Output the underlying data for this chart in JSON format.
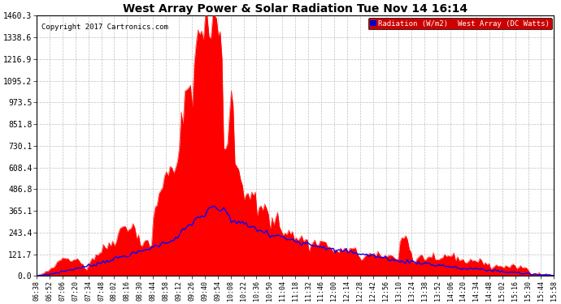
{
  "title": "West Array Power & Solar Radiation Tue Nov 14 16:14",
  "copyright": "Copyright 2017 Cartronics.com",
  "legend_radiation": "Radiation (W/m2)",
  "legend_west_array": "West Array (DC Watts)",
  "background_color": "#ffffff",
  "plot_bg_color": "#ffffff",
  "grid_color": "#b0b0b0",
  "red_fill_color": "#ff0000",
  "blue_line_color": "#0000ff",
  "yticks": [
    0.0,
    121.7,
    243.4,
    365.1,
    486.8,
    608.4,
    730.1,
    851.8,
    973.5,
    1095.2,
    1216.9,
    1338.6,
    1460.3
  ],
  "ymax": 1460.3,
  "ymin": 0.0,
  "xtick_labels": [
    "06:38",
    "06:52",
    "07:06",
    "07:20",
    "07:34",
    "07:48",
    "08:02",
    "08:16",
    "08:30",
    "08:44",
    "08:58",
    "09:12",
    "09:26",
    "09:40",
    "09:54",
    "10:08",
    "10:22",
    "10:36",
    "10:50",
    "11:04",
    "11:18",
    "11:32",
    "11:46",
    "12:00",
    "12:14",
    "12:28",
    "12:42",
    "12:56",
    "13:10",
    "13:24",
    "13:38",
    "13:52",
    "14:06",
    "14:20",
    "14:34",
    "14:48",
    "15:02",
    "15:16",
    "15:30",
    "15:44",
    "15:58"
  ]
}
